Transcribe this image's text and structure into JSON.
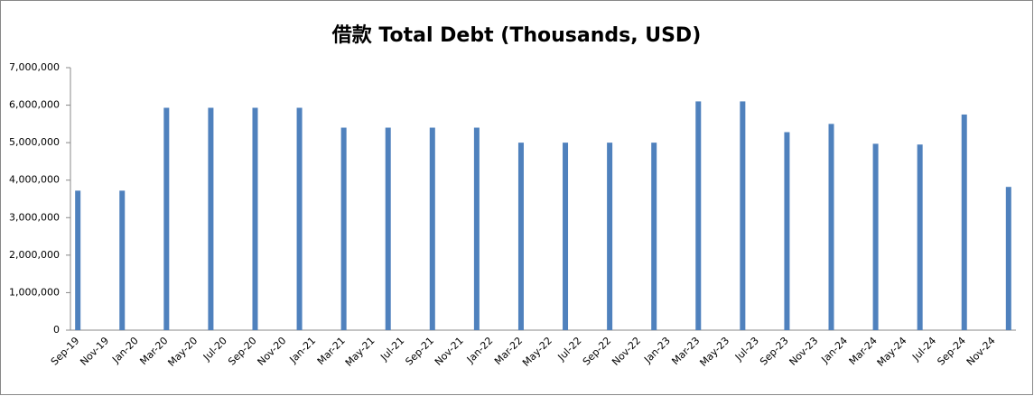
{
  "chart_data": {
    "type": "bar",
    "title": "借款 Total Debt (Thousands, USD)",
    "categories": [
      "Sep-19",
      null,
      "Nov-19",
      null,
      "Jan-20",
      null,
      "Mar-20",
      null,
      "May-20",
      null,
      "Jul-20",
      null,
      "Sep-20",
      null,
      "Nov-20",
      null,
      "Jan-21",
      null,
      "Mar-21",
      null,
      "May-21",
      null,
      "Jul-21",
      null,
      "Sep-21",
      null,
      "Nov-21",
      null,
      "Jan-22",
      null,
      "Mar-22",
      null,
      "May-22",
      null,
      "Jul-22",
      null,
      "Sep-22",
      null,
      "Nov-22",
      null,
      "Jan-23",
      null,
      "Mar-23",
      null,
      "May-23",
      null,
      "Jul-23",
      null,
      "Sep-23",
      null,
      "Nov-23",
      null,
      "Jan-24",
      null,
      "Mar-24",
      null,
      "May-24",
      null,
      "Jul-24",
      null,
      "Sep-24",
      null,
      "Nov-24",
      null
    ],
    "values": [
      3720000,
      null,
      null,
      3720000,
      null,
      null,
      5930000,
      null,
      null,
      5930000,
      null,
      null,
      5930000,
      null,
      null,
      5930000,
      null,
      null,
      5400000,
      null,
      null,
      5400000,
      null,
      null,
      5400000,
      null,
      null,
      5400000,
      null,
      null,
      5000000,
      null,
      null,
      5000000,
      null,
      null,
      5000000,
      null,
      null,
      5000000,
      null,
      null,
      6100000,
      null,
      null,
      6100000,
      null,
      null,
      5280000,
      null,
      null,
      5500000,
      null,
      null,
      4970000,
      null,
      null,
      4950000,
      null,
      null,
      5750000,
      null,
      null,
      3820000
    ],
    "color": "#4f81bd",
    "ylim": [
      0,
      7000000
    ],
    "yticks": [
      0,
      {
        "value": 1000000,
        "label": "1,000,000"
      },
      {
        "value": 2000000,
        "label": "2,000,000"
      },
      {
        "value": 3000000,
        "label": "3,000,000"
      },
      {
        "value": 4000000,
        "label": "4,000,000"
      },
      {
        "value": 5000000,
        "label": "5,000,000"
      },
      {
        "value": 6000000,
        "label": "6,000,000"
      },
      {
        "value": 7000000,
        "label": "7,000,000"
      }
    ],
    "grid": false
  }
}
